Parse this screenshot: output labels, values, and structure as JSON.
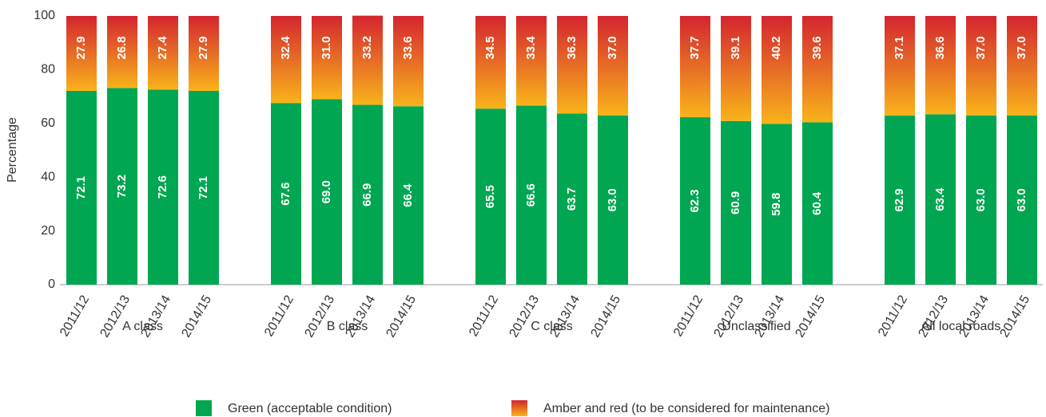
{
  "chart_data": {
    "type": "stacked-bar",
    "ylabel": "Percentage",
    "ylim": [
      0,
      100
    ],
    "yticks": [
      0,
      20,
      40,
      60,
      80,
      100
    ],
    "grid": false,
    "groups": [
      "A class",
      "B class",
      "C class",
      "Unclassified",
      "All local roads"
    ],
    "categories": [
      "2011/12",
      "2012/13",
      "2013/14",
      "2014/15",
      "2011/12",
      "2012/13",
      "2013/14",
      "2014/15",
      "2011/12",
      "2012/13",
      "2013/14",
      "2014/15",
      "2011/12",
      "2012/13",
      "2013/14",
      "2014/15",
      "2011/12",
      "2012/13",
      "2013/14",
      "2014/15"
    ],
    "series": [
      {
        "name": "Green (acceptable condition)",
        "color": "#00a651",
        "values": [
          72.1,
          73.2,
          72.6,
          72.1,
          67.6,
          69.0,
          66.9,
          66.4,
          65.5,
          66.6,
          63.7,
          63.0,
          62.3,
          60.9,
          59.8,
          60.4,
          62.9,
          63.4,
          63.0,
          63.0
        ],
        "value_labels": [
          "72.1",
          "73.2",
          "72.6",
          "72.1",
          "67.6",
          "69.0",
          "66.9",
          "66.4",
          "65.5",
          "66.6",
          "63.7",
          "63.0",
          "62.3",
          "60.9",
          "59.8",
          "60.4",
          "62.9",
          "63.4",
          "63.0",
          "63.0"
        ]
      },
      {
        "name": "Amber and red (to be considered for maintenance)",
        "color": [
          "#d4252f",
          "#f9b31b"
        ],
        "values": [
          27.9,
          26.8,
          27.4,
          27.9,
          32.4,
          31.0,
          33.2,
          33.6,
          34.5,
          33.4,
          36.3,
          37.0,
          37.7,
          39.1,
          40.2,
          39.6,
          37.1,
          36.6,
          37.0,
          37.0
        ],
        "value_labels": [
          "27.9",
          "26.8",
          "27.4",
          "27.9",
          "32.4",
          "31.0",
          "33.2",
          "33.6",
          "34.5",
          "33.4",
          "36.3",
          "37.0",
          "37.7",
          "39.1",
          "40.2",
          "39.6",
          "37.1",
          "36.6",
          "37.0",
          "37.0"
        ]
      }
    ]
  }
}
